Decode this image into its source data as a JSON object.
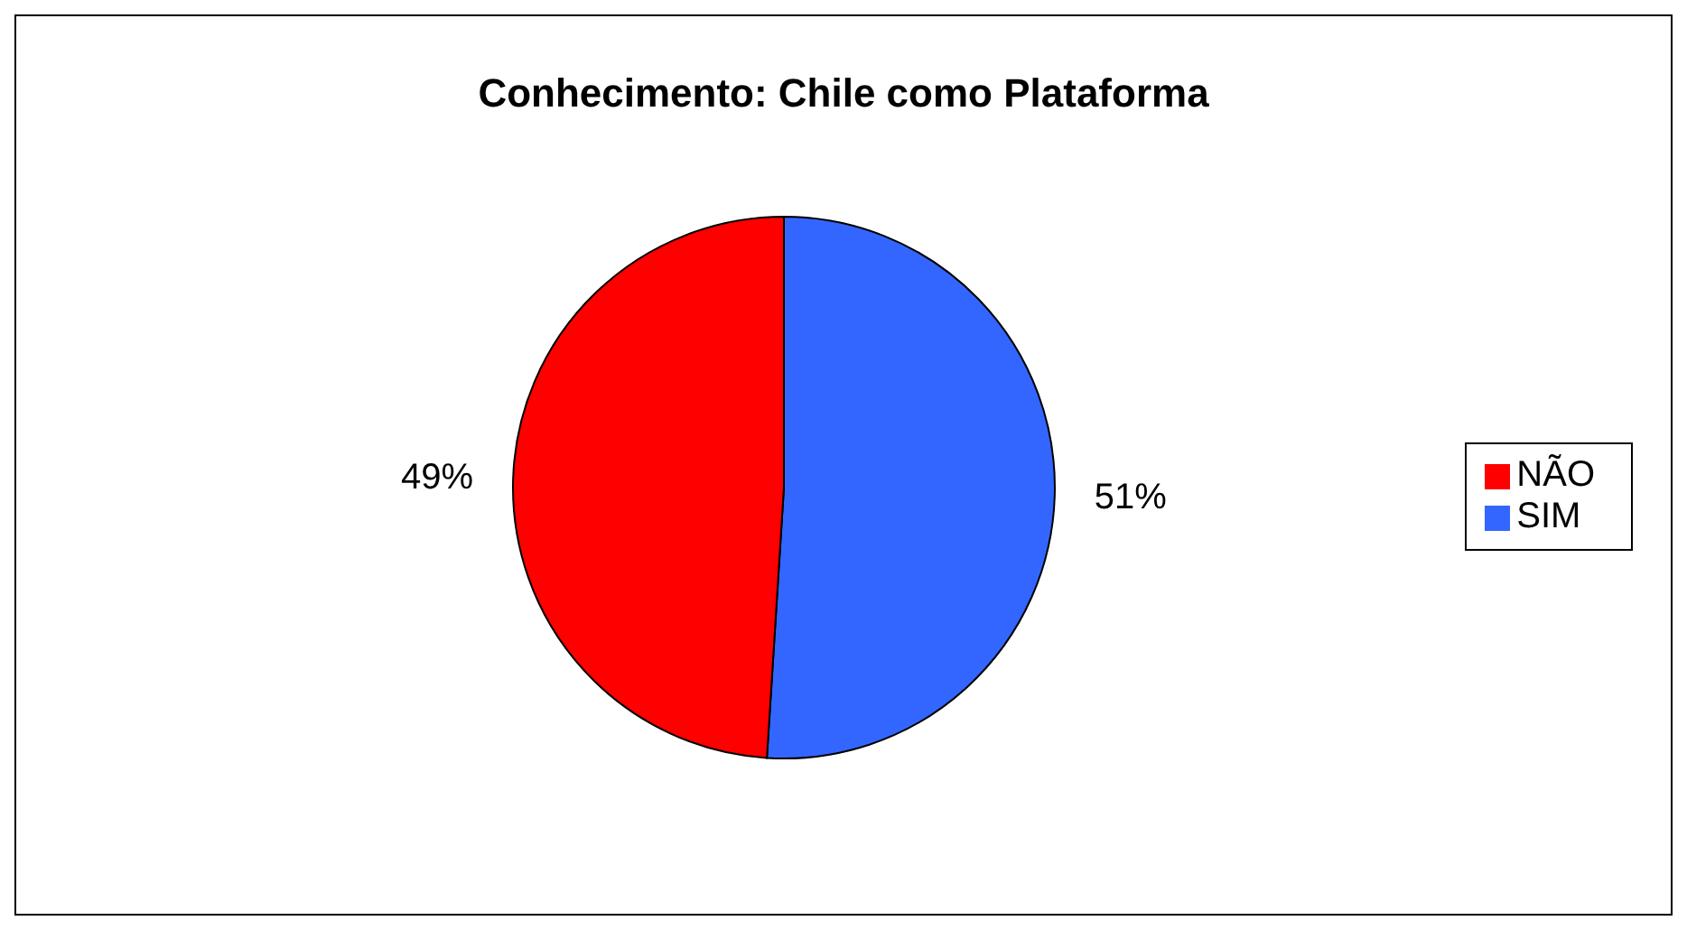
{
  "chart_data": {
    "type": "pie",
    "title": "Conhecimento: Chile como Plataforma",
    "categories": [
      "SIM",
      "NÃO"
    ],
    "values": [
      51,
      49
    ],
    "colors": [
      "#3366ff",
      "#ff0000"
    ],
    "value_labels": [
      "51%",
      "49%"
    ],
    "legend": "right"
  }
}
